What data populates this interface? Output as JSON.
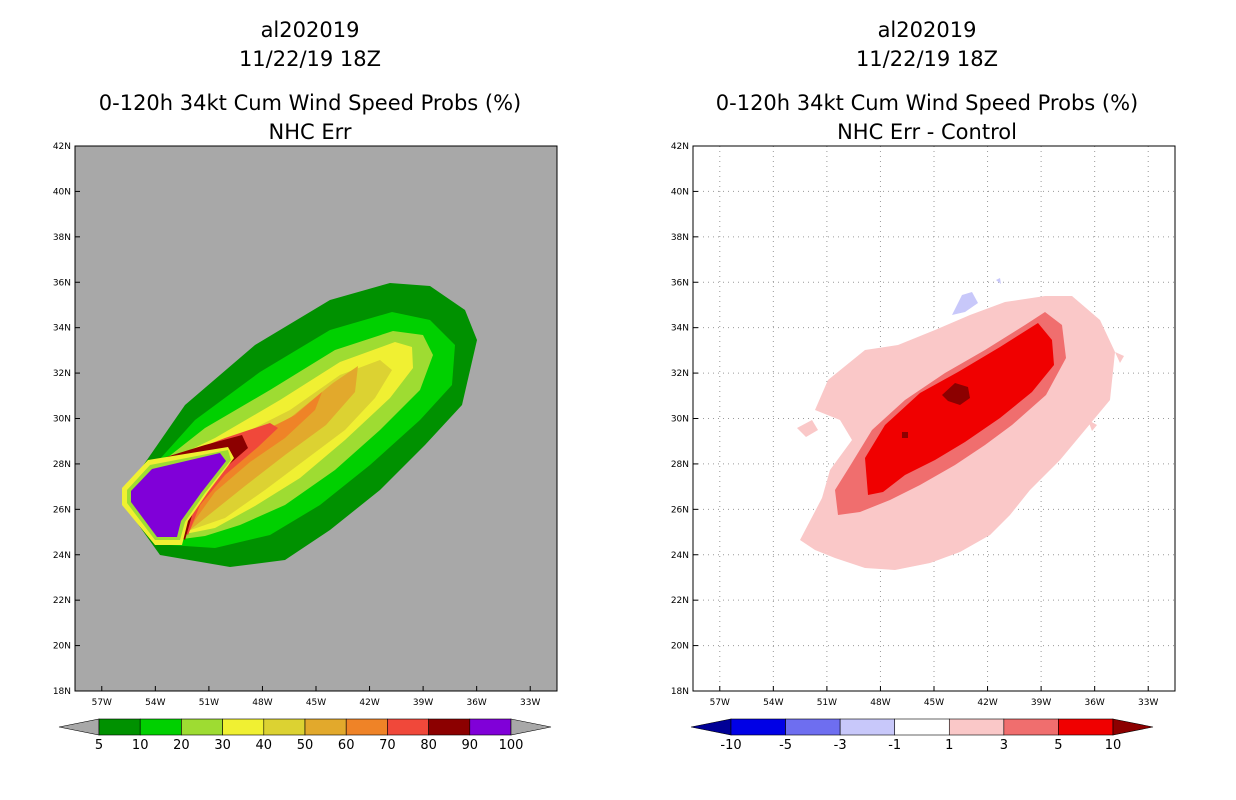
{
  "chart_data": [
    {
      "type": "heatmap",
      "title_lines": [
        "al202019",
        "11/22/19 18Z",
        "0-120h 34kt Cum Wind Speed Probs (%)",
        "NHC Err"
      ],
      "x_ticks": [
        "57W",
        "54W",
        "51W",
        "48W",
        "45W",
        "42W",
        "39W",
        "36W",
        "33W"
      ],
      "y_ticks": [
        "18N",
        "20N",
        "22N",
        "24N",
        "26N",
        "28N",
        "30N",
        "32N",
        "34N",
        "36N",
        "38N",
        "40N",
        "42N"
      ],
      "background_color": "#a8a8a8",
      "colorbar": {
        "labels": [
          "5",
          "10",
          "20",
          "30",
          "40",
          "50",
          "60",
          "70",
          "80",
          "90",
          "100"
        ],
        "colors": [
          "#009100",
          "#00d000",
          "#9edc32",
          "#f0f032",
          "#dcd232",
          "#e2a92c",
          "#ef8327",
          "#f0483a",
          "#8c0000",
          "#8000d8"
        ],
        "under_color": "#a8a8a8",
        "over_color": "#a8a8a8"
      }
    },
    {
      "type": "heatmap",
      "title_lines": [
        "al202019",
        "11/22/19 18Z",
        "0-120h 34kt Cum Wind Speed Probs (%)",
        "NHC Err - Control"
      ],
      "x_ticks": [
        "57W",
        "54W",
        "51W",
        "48W",
        "45W",
        "42W",
        "39W",
        "36W",
        "33W"
      ],
      "y_ticks": [
        "18N",
        "20N",
        "22N",
        "24N",
        "26N",
        "28N",
        "30N",
        "32N",
        "34N",
        "36N",
        "38N",
        "40N",
        "42N"
      ],
      "background_color": "#ffffff",
      "grid": true,
      "colorbar": {
        "labels": [
          "-10",
          "-5",
          "-3",
          "-1",
          "1",
          "3",
          "5",
          "10"
        ],
        "colors": [
          "#0000e6",
          "#6e6ef0",
          "#c8c8fa",
          "#ffffff",
          "#fac8c8",
          "#f06e6e",
          "#f00000"
        ],
        "under_color": "#000096",
        "over_color": "#8c0000"
      }
    }
  ]
}
